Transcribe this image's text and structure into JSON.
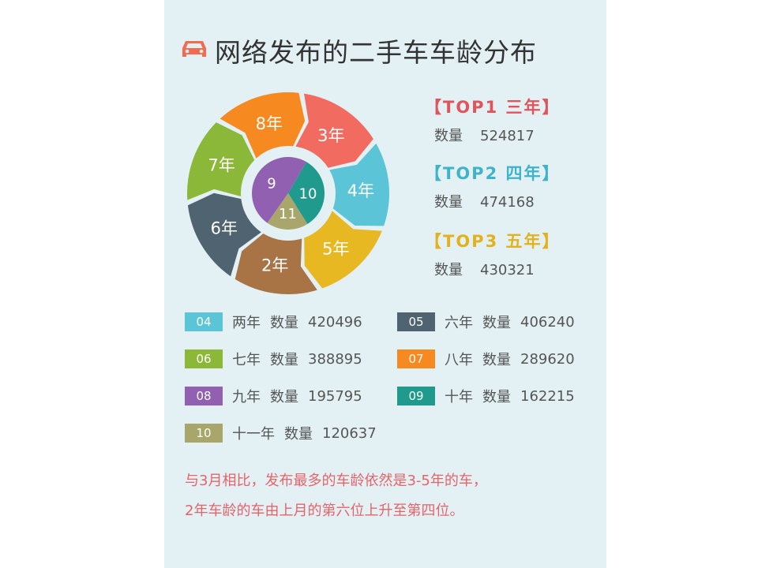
{
  "title": "网络发布的二手车车龄分布",
  "icon": "car-icon",
  "top": [
    {
      "label": "【TOP1 三年】",
      "count_label": "数量",
      "count": "524817",
      "color": "#e0555b"
    },
    {
      "label": "【TOP2 四年】",
      "count_label": "数量",
      "count": "474168",
      "color": "#3fb3c9"
    },
    {
      "label": "【TOP3 五年】",
      "count_label": "数量",
      "count": "430321",
      "color": "#e2b21c"
    }
  ],
  "legend": [
    {
      "code": "04",
      "name": "两年",
      "count_label": "数量",
      "count": "420496",
      "color": "#5bc4d6"
    },
    {
      "code": "05",
      "name": "六年",
      "count_label": "数量",
      "count": "406240",
      "color": "#4f6470"
    },
    {
      "code": "06",
      "name": "七年",
      "count_label": "数量",
      "count": "388895",
      "color": "#8cb83a"
    },
    {
      "code": "07",
      "name": "八年",
      "count_label": "数量",
      "count": "289620",
      "color": "#f6891f"
    },
    {
      "code": "08",
      "name": "九年",
      "count_label": "数量",
      "count": "195795",
      "color": "#9160b0"
    },
    {
      "code": "09",
      "name": "十年",
      "count_label": "数量",
      "count": "162215",
      "color": "#1f9a8c"
    },
    {
      "code": "10",
      "name": "十一年",
      "count_label": "数量",
      "count": "120637",
      "color": "#a8a66b"
    }
  ],
  "note": [
    "与3月相比，发布最多的车龄依然是3-5年的车，",
    "2年车龄的车由上月的第六位上升至第四位。"
  ],
  "chart_data": {
    "type": "pie",
    "ring": [
      {
        "label": "3年",
        "value": 524817,
        "color": "#f26b61"
      },
      {
        "label": "4年",
        "value": 474168,
        "color": "#5bc4d6"
      },
      {
        "label": "5年",
        "value": 430321,
        "color": "#e8b823"
      },
      {
        "label": "2年",
        "value": 420496,
        "color": "#a87446"
      },
      {
        "label": "6年",
        "value": 406240,
        "color": "#4f6470"
      },
      {
        "label": "7年",
        "value": 388895,
        "color": "#8cb83a"
      },
      {
        "label": "8年",
        "value": 289620,
        "color": "#f6891f"
      }
    ],
    "center": [
      {
        "label": "9",
        "value": 195795,
        "color": "#9160b0"
      },
      {
        "label": "10",
        "value": 162215,
        "color": "#1f9a8c"
      },
      {
        "label": "11",
        "value": 120637,
        "color": "#a8a66b"
      }
    ]
  }
}
